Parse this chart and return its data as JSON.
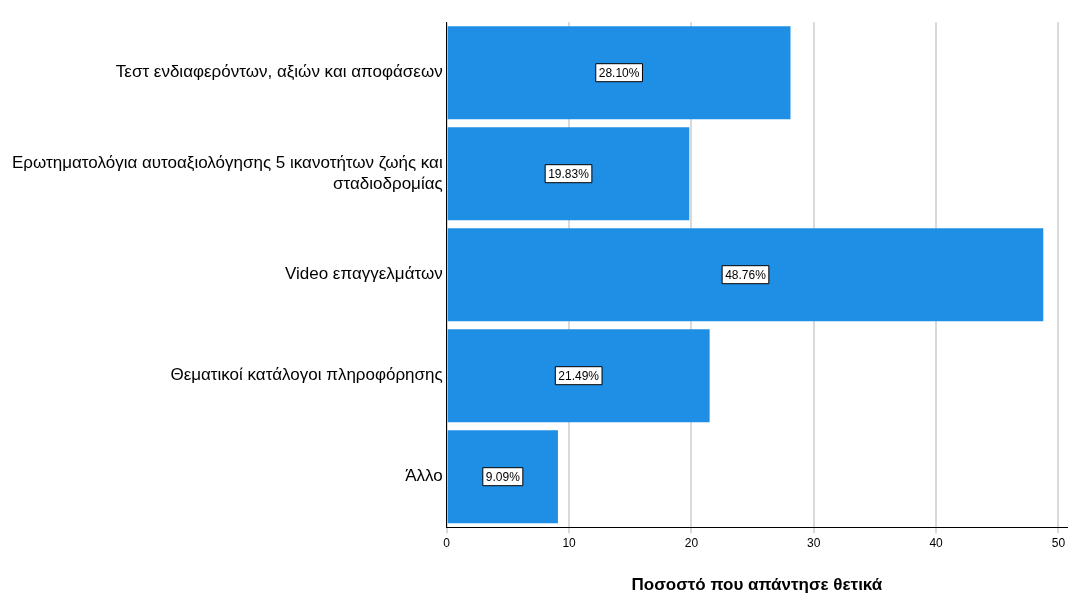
{
  "chart_data": {
    "type": "bar",
    "orientation": "horizontal",
    "xlabel": "Ποσοστό που απάντησε θετικά",
    "categories": [
      "Τεστ ενδιαφερόντων, αξιών και αποφάσεων",
      "Ερωτηματολόγια αυτοαξιολόγησης 5 ικανοτήτων ζωής και σταδιοδρομίας",
      "Video επαγγελμάτων",
      "Θεματικοί κατάλογοι πληροφόρησης",
      "Άλλο"
    ],
    "values": [
      28.1,
      19.83,
      48.76,
      21.49,
      9.09
    ],
    "value_labels": [
      "28.10%",
      "19.83%",
      "48.76%",
      "21.49%",
      "9.09%"
    ],
    "color": "#1f8fe5",
    "xlim": [
      0,
      50.7
    ],
    "xticks": [
      0,
      10,
      20,
      30,
      40,
      50
    ],
    "grid": "x",
    "legend": false
  }
}
